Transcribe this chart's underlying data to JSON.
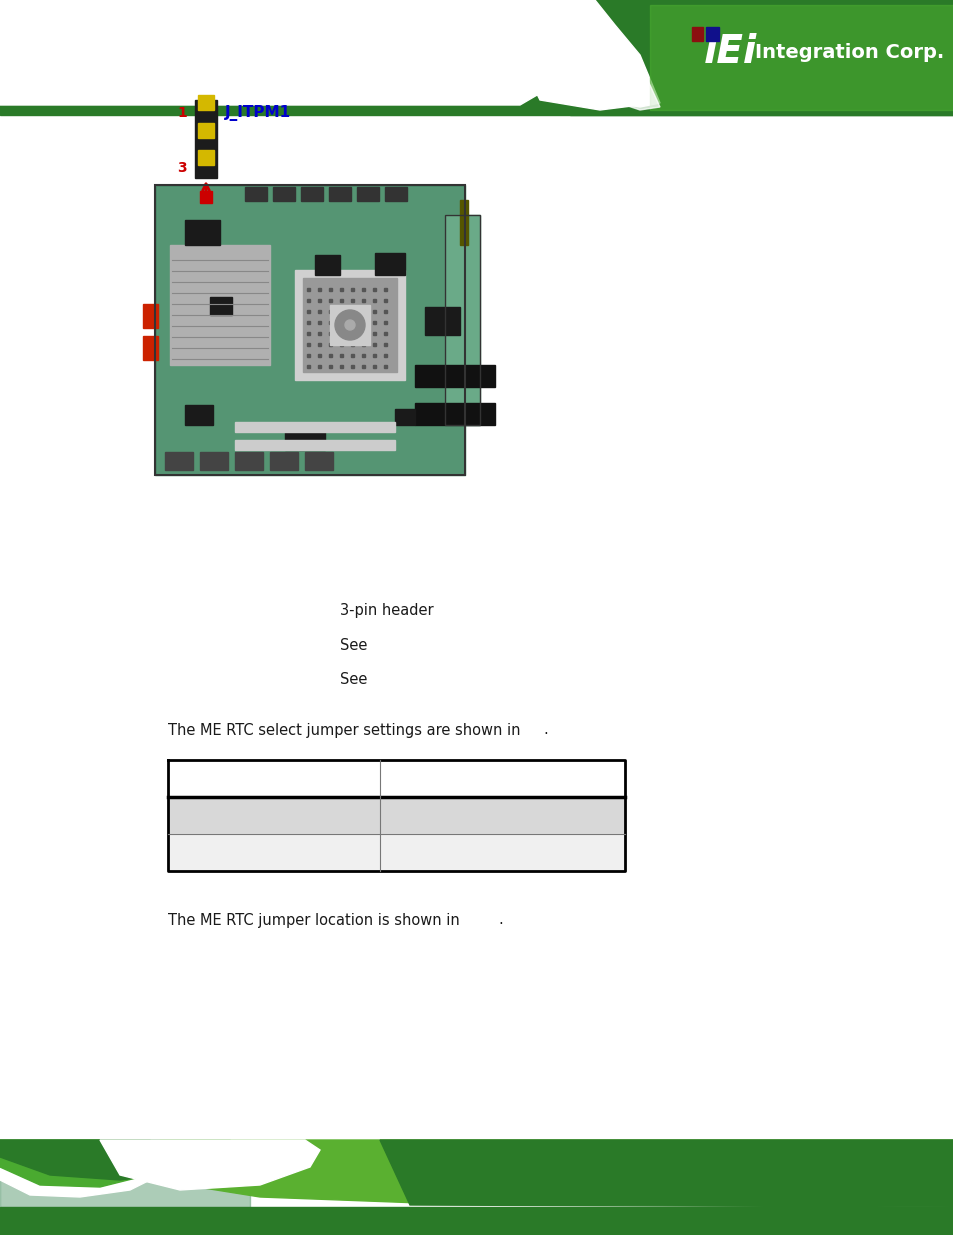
{
  "bg_color": "#ffffff",
  "body_text_color": "#1a1a1a",
  "body_text_size": 10.0,
  "jumper_label": "J_ITPM1",
  "text_3pin": "3-pin header",
  "text_see1": "See",
  "text_see2": "See",
  "text_rtc_settings": "The ME RTC select jumper settings are shown in",
  "text_rtc_location": "The ME RTC jumper location is shown in",
  "text_dot": ".",
  "jumper_text_color": "#0000cc",
  "pin_num_color": "#cc0000",
  "header_green_dark": "#2a7a28",
  "header_green_mid": "#4aaa30",
  "header_green_light": "#6ac040",
  "footer_green_dark": "#2a7a28",
  "footer_green_mid": "#4aaa30",
  "footer_green_light": "#5ab030",
  "logo_color": "#ffffff",
  "table_row1_bg": "#ffffff",
  "table_row2_bg": "#d8d8d8",
  "table_row3_bg": "#f0f0f0",
  "table_border_thick": 2.0,
  "table_border_thin": 0.7,
  "pcb_green": "#3a7a3a",
  "pcb_green_light": "#5a9a5a",
  "jumper_body": "#1c1c1c",
  "jumper_pin_color": "#d4b800",
  "arrow_color": "#cc0000"
}
